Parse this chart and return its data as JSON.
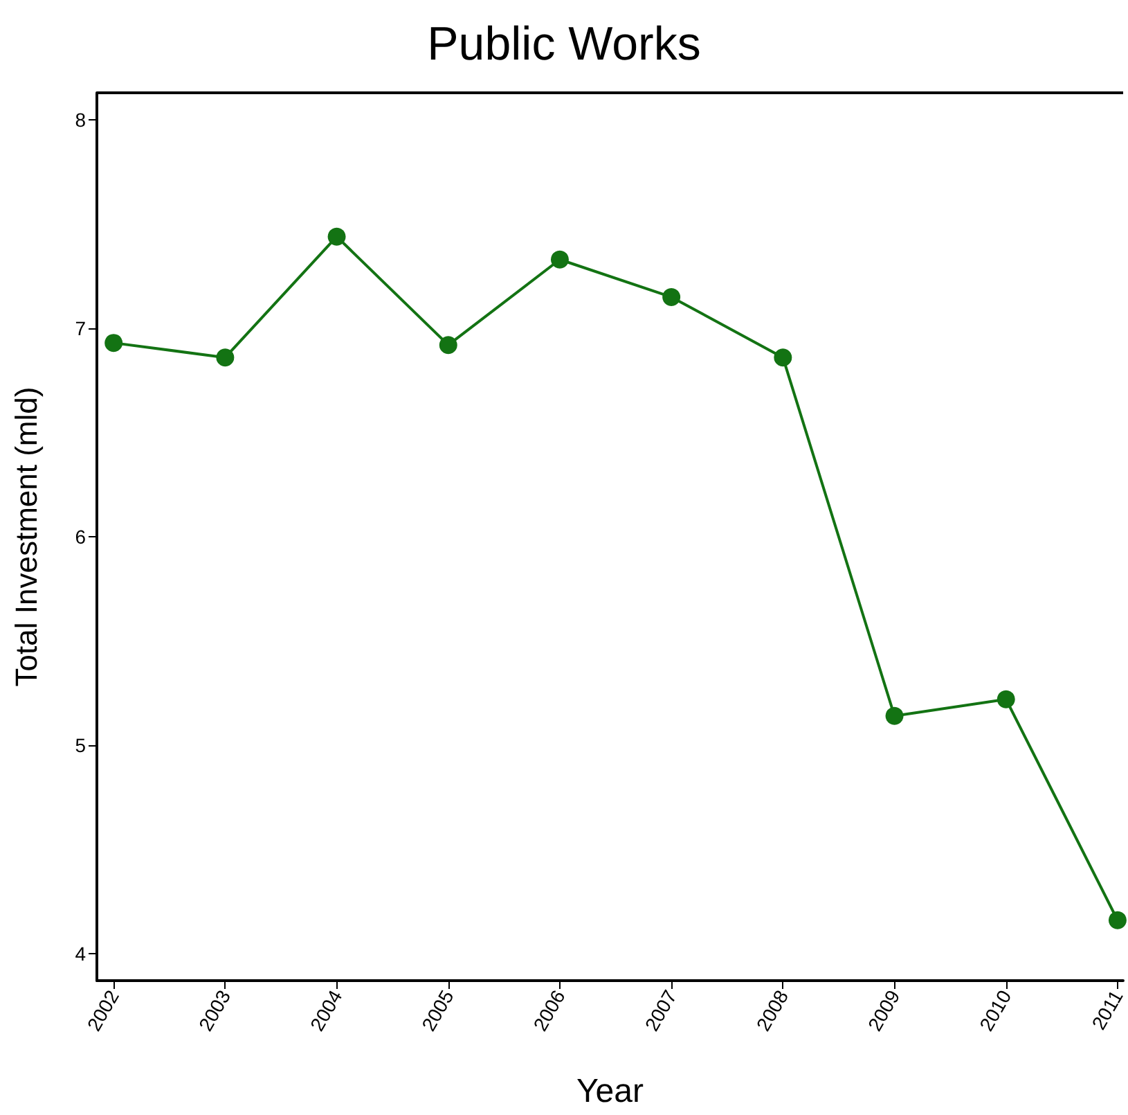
{
  "chart_data": {
    "type": "line",
    "title": "Public Works",
    "xlabel": "Year",
    "ylabel": "Total Investment (mld)",
    "x": [
      2002,
      2003,
      2004,
      2005,
      2006,
      2007,
      2008,
      2009,
      2010,
      2011
    ],
    "series": [
      {
        "color": "#137313",
        "values": [
          6.93,
          6.86,
          7.44,
          6.92,
          7.33,
          7.15,
          6.86,
          5.14,
          5.22,
          4.16
        ]
      }
    ],
    "xlim": [
      2001.85,
      2011.05
    ],
    "xticks": [
      2002,
      2003,
      2004,
      2005,
      2006,
      2007,
      2008,
      2009,
      2010,
      2011
    ],
    "ylim": [
      3.87,
      8.13
    ],
    "yticks": [
      4,
      5,
      6,
      7,
      8
    ],
    "grid": false,
    "marker": "circle",
    "line_style": "solid"
  }
}
